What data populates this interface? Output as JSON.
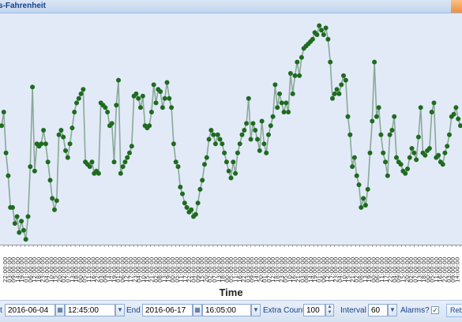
{
  "panel": {
    "title": "s-Fahrenheit"
  },
  "chart_data": {
    "type": "line",
    "xlabel": "Time",
    "tick_labels": [
      "22:00:00",
      "03:00:00",
      "09:00:00",
      "14:00:00",
      "19:00:00",
      "01:00:00",
      "06:00:00",
      "12:00:00",
      "18:00:00",
      "23:00:00",
      "04:00:00",
      "10:00:00",
      "15:00:00",
      "20:00:00",
      "02:00:00",
      "07:00:00",
      "13:00:00",
      "18:00:00",
      "00:00:00",
      "05:00:00",
      "11:00:00",
      "16:00:00",
      "22:00:00",
      "03:00:00",
      "09:00:00",
      "14:00:00",
      "19:00:00",
      "01:00:00",
      "06:00:00",
      "12:00:00",
      "17:00:00",
      "23:00:00",
      "04:00:00",
      "10:00:00",
      "15:00:00",
      "21:00:00",
      "02:00:00",
      "08:00:00",
      "13:00:00",
      "19:00:00",
      "00:00:00",
      "05:00:00",
      "11:00:00",
      "17:00:00",
      "22:00:00",
      "04:00:00",
      "09:00:00",
      "15:00:00",
      "20:00:00",
      "02:00:00",
      "07:00:00",
      "13:00:00",
      "18:00:00",
      "00:00:00",
      "05:00:00",
      "11:00:00",
      "16:00:00",
      "22:00:00",
      "03:00:00",
      "09:00:00",
      "14:00:00",
      "20:00:00",
      "01:00:00",
      "07:00:00",
      "12:00:00",
      "18:00:00",
      "23:00:00",
      "05:00:00",
      "10:00:00",
      "16:00:00",
      "21:00:00",
      "03:00:00",
      "08:00:00",
      "14:00:00",
      "19:00:00",
      "01:00:00",
      "06:00:00",
      "12:00:00",
      "17:00:00",
      "23:00:00",
      "04:00:00",
      "10:00:00",
      "15:00:00",
      "21:00:00",
      "02:00:00",
      "08:00:00",
      "13:00:00",
      "19:00:00",
      "00:00:00",
      "06:00:00",
      "11:00:00",
      "17:00:00",
      "22:00:00",
      "04:00:00",
      "09:00:00",
      "15:00:00",
      "20:00:00",
      "02:00:00",
      "07:00:00",
      "13:00:00",
      "18:00:00",
      "00:00:00",
      "05:00:00",
      "11:00:00",
      "16:00:00",
      "22:00:00",
      "03:00:00",
      "09:00:00",
      "14:00:00",
      "20:00:00",
      "01:00:00",
      "07:00:00",
      "12:00:00",
      "18:00:00",
      "23:00:00"
    ],
    "y_level": [
      0.52,
      0.58,
      0.4,
      0.3,
      0.16,
      0.16,
      0.09,
      0.12,
      0.05,
      0.1,
      0.06,
      0.02,
      0.12,
      0.34,
      0.69,
      0.32,
      0.44,
      0.43,
      0.44,
      0.5,
      0.44,
      0.36,
      0.28,
      0.2,
      0.15,
      0.19,
      0.48,
      0.5,
      0.47,
      0.41,
      0.38,
      0.44,
      0.51,
      0.58,
      0.62,
      0.64,
      0.66,
      0.68,
      0.36,
      0.35,
      0.34,
      0.36,
      0.31,
      0.32,
      0.31,
      0.62,
      0.61,
      0.6,
      0.58,
      0.52,
      0.53,
      0.36,
      0.61,
      0.72,
      0.31,
      0.34,
      0.36,
      0.38,
      0.4,
      0.43,
      0.65,
      0.66,
      0.64,
      0.6,
      0.65,
      0.52,
      0.51,
      0.52,
      0.58,
      0.7,
      0.62,
      0.68,
      0.67,
      0.6,
      0.64,
      0.71,
      0.64,
      0.6,
      0.44,
      0.36,
      0.34,
      0.25,
      0.22,
      0.18,
      0.16,
      0.14,
      0.15,
      0.12,
      0.13,
      0.18,
      0.24,
      0.28,
      0.35,
      0.38,
      0.46,
      0.5,
      0.48,
      0.44,
      0.48,
      0.46,
      0.44,
      0.4,
      0.36,
      0.32,
      0.29,
      0.36,
      0.31,
      0.4,
      0.44,
      0.48,
      0.5,
      0.53,
      0.64,
      0.46,
      0.53,
      0.5,
      0.46,
      0.41,
      0.54,
      0.44,
      0.4,
      0.48,
      0.52,
      0.56,
      0.7,
      0.6,
      0.66,
      0.62,
      0.58,
      0.62,
      0.58,
      0.75,
      0.66,
      0.74,
      0.8,
      0.74,
      0.82,
      0.86,
      0.87,
      0.88,
      0.89,
      0.9,
      0.93,
      0.92,
      0.96,
      0.94,
      0.92,
      0.95,
      0.9,
      0.8,
      0.64,
      0.66,
      0.68,
      0.66,
      0.7,
      0.74,
      0.72,
      0.56,
      0.48,
      0.34,
      0.38,
      0.3,
      0.26,
      0.16,
      0.2,
      0.17,
      0.24,
      0.4,
      0.54,
      0.8,
      0.56,
      0.6,
      0.48,
      0.4,
      0.36,
      0.3,
      0.48,
      0.5,
      0.56,
      0.38,
      0.36,
      0.35,
      0.32,
      0.31,
      0.33,
      0.38,
      0.42,
      0.4,
      0.37,
      0.47,
      0.6,
      0.4,
      0.39,
      0.41,
      0.42,
      0.58,
      0.62,
      0.38,
      0.39,
      0.36,
      0.35,
      0.4,
      0.43,
      0.48,
      0.56,
      0.57,
      0.6,
      0.55,
      0.52
    ]
  },
  "toolbar": {
    "start_label": "t",
    "start_date": "2016-06-04",
    "start_time": "12:45:00",
    "end_label": "End",
    "end_date": "2016-06-17",
    "end_time": "16:05:00",
    "extra_count_label": "Extra Count",
    "extra_count": "100",
    "interval_label": "Interval",
    "interval": "60",
    "alarms_label": "Alarms?",
    "alarms_checked": "✓",
    "rebuild_label": "Rebu",
    "calendar_icon": "calendar-icon",
    "dropdown_icon": "chevron-down-icon",
    "spinner_icon": "spinner-arrows-icon"
  }
}
